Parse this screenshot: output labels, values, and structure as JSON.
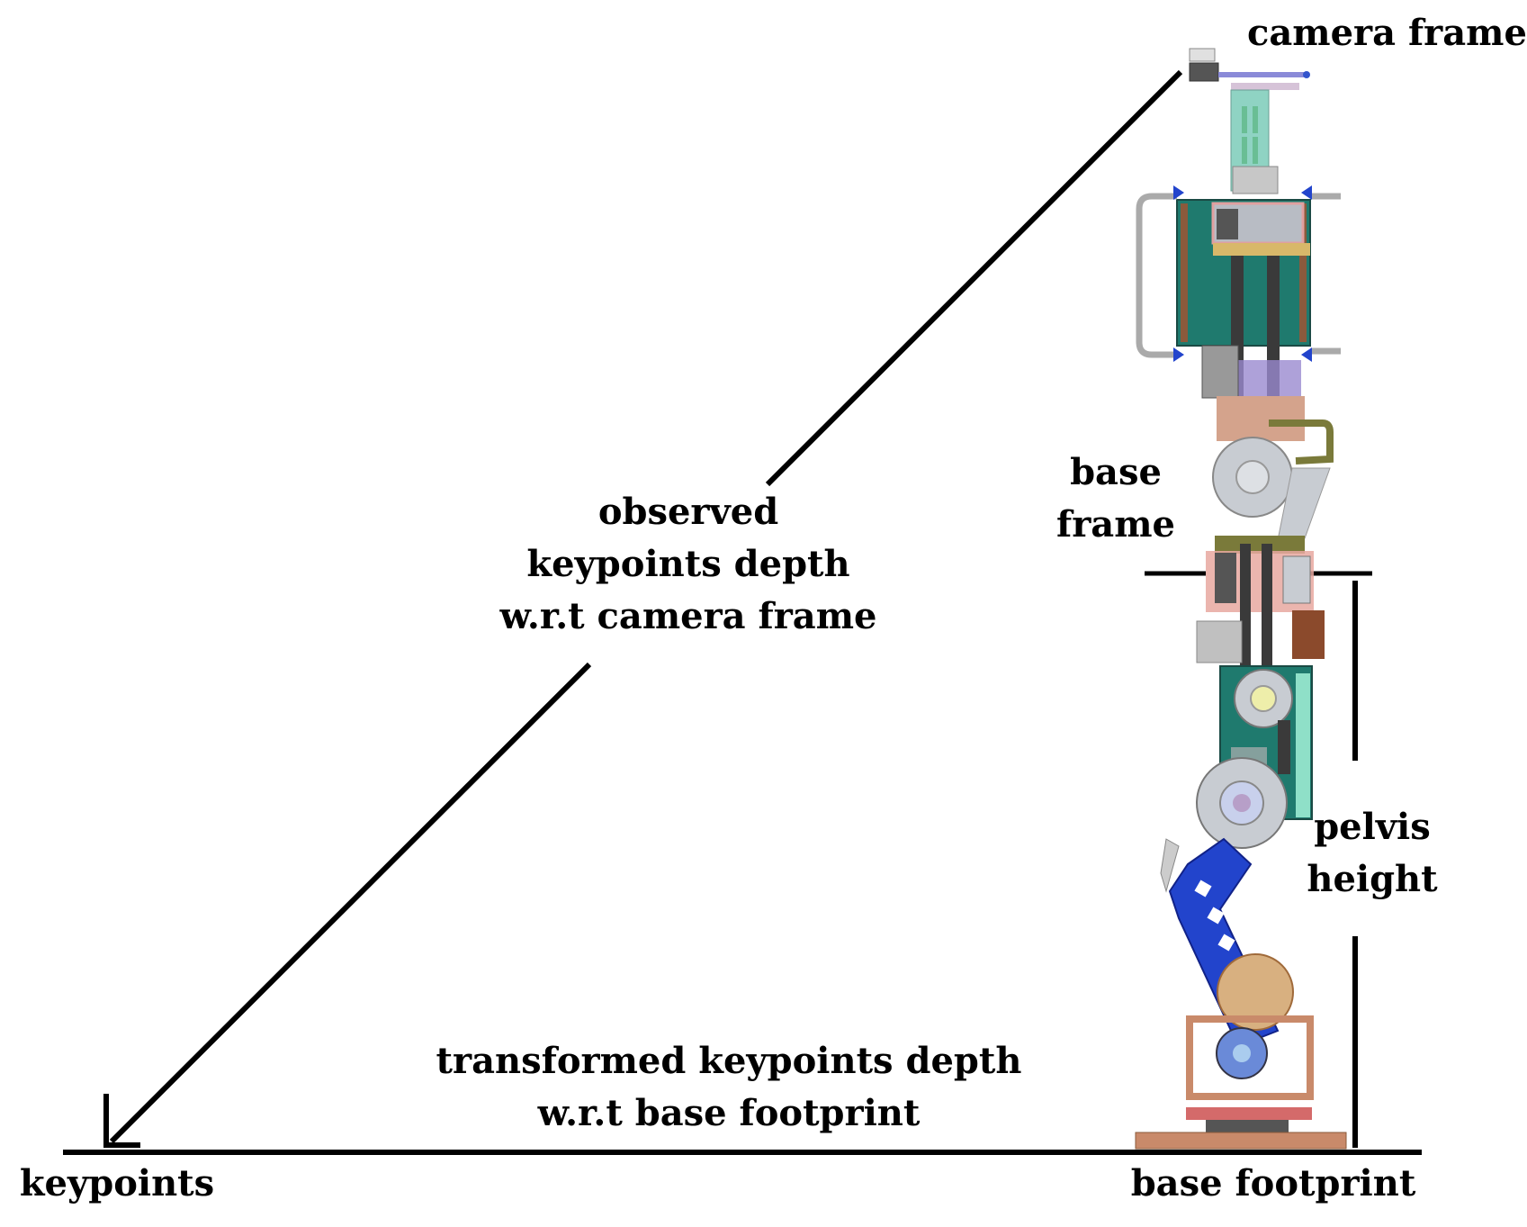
{
  "labels": {
    "camera_frame": "camera frame",
    "base_frame_line1": "base",
    "base_frame_line2": "frame",
    "observed_line1": "observed",
    "observed_line2": "keypoints depth",
    "observed_line3": "w.r.t camera frame",
    "pelvis_line1": "pelvis",
    "pelvis_line2": "height",
    "transformed_line1": "transformed keypoints depth",
    "transformed_line2": "w.r.t base footprint",
    "keypoints": "keypoints",
    "base_footprint": "base footprint"
  },
  "colors": {
    "line": "#000000",
    "robot_teal": "#1f7a6e",
    "robot_blue": "#2244cc",
    "robot_grey": "#b8bcc4",
    "robot_dark": "#3a3a3a",
    "robot_copper": "#c98a6a"
  },
  "icons": {
    "robot": "humanoid-robot-leg-side-view"
  }
}
